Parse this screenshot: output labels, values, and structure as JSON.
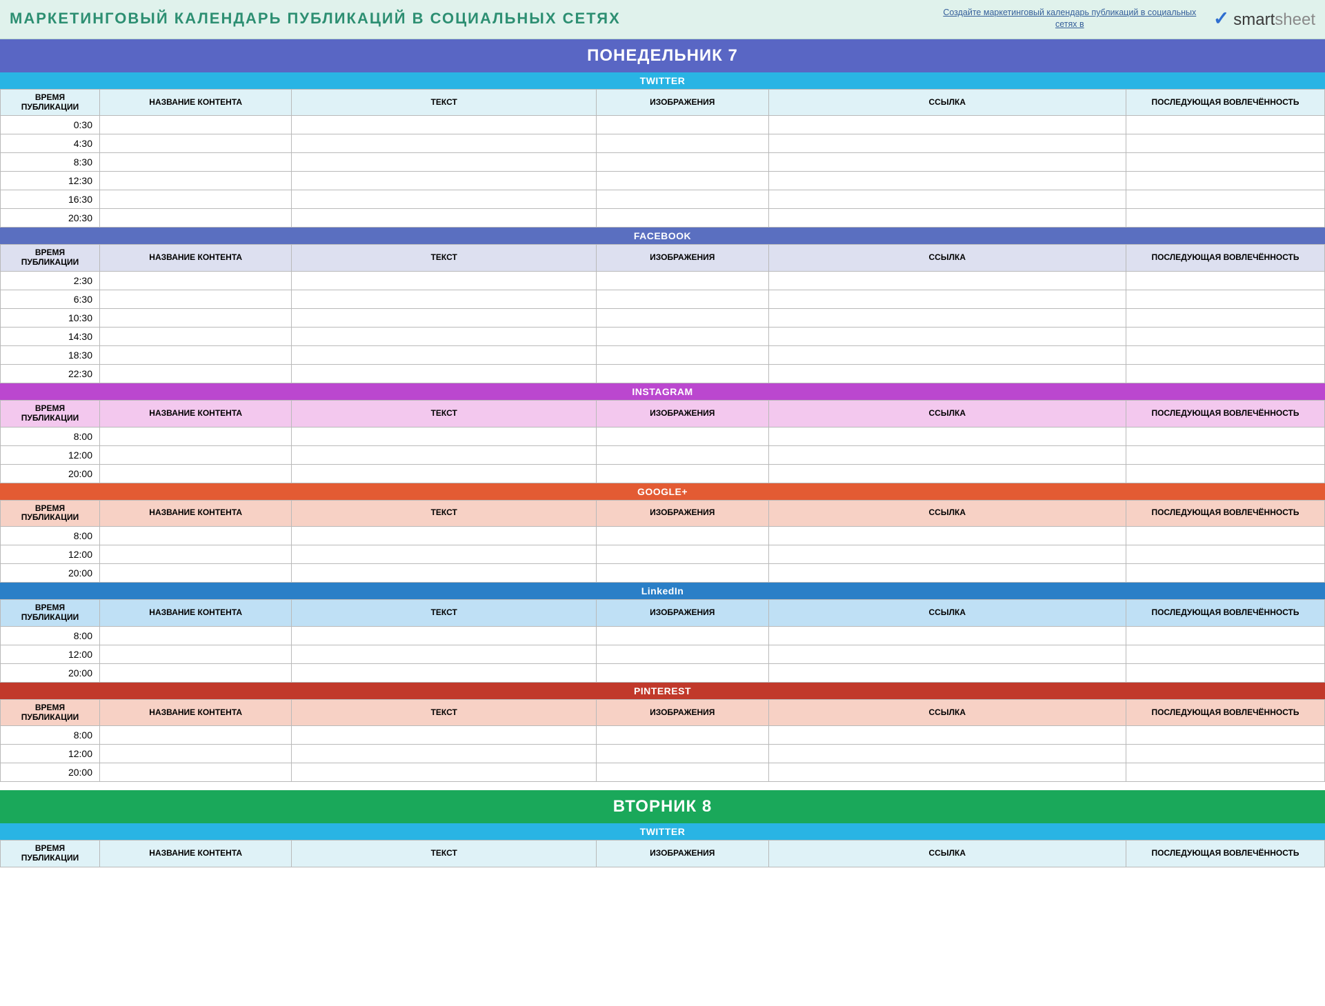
{
  "header": {
    "title": "МАРКЕТИНГОВЫЙ КАЛЕНДАРЬ ПУБЛИКАЦИЙ В СОЦИАЛЬНЫХ СЕТЯХ",
    "link_text": "Создайте маркетинговый календарь публикаций в социальных сетях в",
    "brand_bold": "smart",
    "brand_light": "sheet",
    "header_bg": "#e0f2ec",
    "title_color": "#2d8f72"
  },
  "columns": {
    "time": "ВРЕМЯ ПУБЛИКАЦИИ",
    "content_name": "НАЗВАНИЕ КОНТЕНТА",
    "text": "ТЕКСТ",
    "images": "ИЗОБРАЖЕНИЯ",
    "link": "ССЫЛКА",
    "engagement": "ПОСЛЕДУЮЩАЯ ВОВЛЕЧЁННОСТЬ"
  },
  "days": [
    {
      "label": "ПОНЕДЕЛЬНИК   7",
      "bg": "#5966c4",
      "platforms": [
        {
          "name": "TWITTER",
          "bar_bg": "#29b4e4",
          "header_row_bg": "#dff2f7",
          "times": [
            "0:30",
            "4:30",
            "8:30",
            "12:30",
            "16:30",
            "20:30"
          ]
        },
        {
          "name": "FACEBOOK",
          "bar_bg": "#5a6fc0",
          "header_row_bg": "#dde0f0",
          "times": [
            "2:30",
            "6:30",
            "10:30",
            "14:30",
            "18:30",
            "22:30"
          ]
        },
        {
          "name": "INSTAGRAM",
          "bar_bg": "#bb47cf",
          "header_row_bg": "#f3c8ee",
          "times": [
            "8:00",
            "12:00",
            "20:00"
          ]
        },
        {
          "name": "GOOGLE+",
          "bar_bg": "#e35b33",
          "header_row_bg": "#f7d1c5",
          "times": [
            "8:00",
            "12:00",
            "20:00"
          ]
        },
        {
          "name": "LinkedIn",
          "bar_bg": "#2a7fc7",
          "header_row_bg": "#bfe0f5",
          "times": [
            "8:00",
            "12:00",
            "20:00"
          ]
        },
        {
          "name": "PINTEREST",
          "bar_bg": "#c1392b",
          "header_row_bg": "#f7d1c5",
          "times": [
            "8:00",
            "12:00",
            "20:00"
          ]
        }
      ]
    },
    {
      "label": "ВТОРНИК   8",
      "bg": "#1aa85a",
      "platforms": [
        {
          "name": "TWITTER",
          "bar_bg": "#29b4e4",
          "header_row_bg": "#dff2f7",
          "times": []
        }
      ]
    }
  ]
}
